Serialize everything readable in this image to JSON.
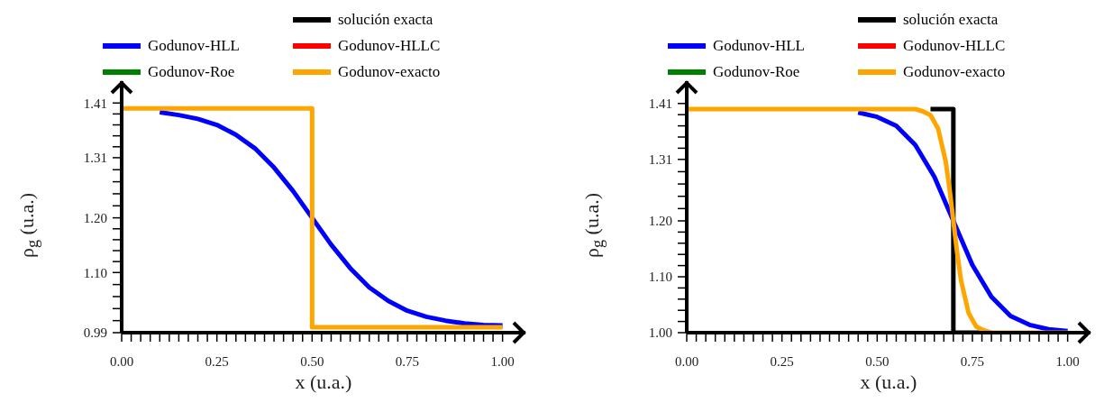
{
  "chart_data": [
    {
      "type": "line",
      "xlabel": "x (u.a.)",
      "ylabel": "ρ$_{g}$ (u.a.)",
      "legend": "top",
      "xlim": [
        0,
        1.06
      ],
      "ylim": [
        0.99,
        1.45
      ],
      "xticks": [
        {
          "value": 0,
          "label": "0.00"
        },
        {
          "value": 0.025,
          "label": null
        },
        {
          "value": 0.05,
          "label": null
        },
        {
          "value": 0.075,
          "label": null
        },
        {
          "value": 0.1,
          "label": null
        },
        {
          "value": 0.125,
          "label": null
        },
        {
          "value": 0.15,
          "label": null
        },
        {
          "value": 0.175,
          "label": null
        },
        {
          "value": 0.2,
          "label": null
        },
        {
          "value": 0.225,
          "label": null
        },
        {
          "value": 0.25,
          "label": "0.25"
        },
        {
          "value": 0.275,
          "label": null
        },
        {
          "value": 0.3,
          "label": null
        },
        {
          "value": 0.325,
          "label": null
        },
        {
          "value": 0.35,
          "label": null
        },
        {
          "value": 0.375,
          "label": null
        },
        {
          "value": 0.4,
          "label": null
        },
        {
          "value": 0.425,
          "label": null
        },
        {
          "value": 0.45,
          "label": null
        },
        {
          "value": 0.475,
          "label": null
        },
        {
          "value": 0.5,
          "label": "0.50"
        },
        {
          "value": 0.525,
          "label": null
        },
        {
          "value": 0.55,
          "label": null
        },
        {
          "value": 0.575,
          "label": null
        },
        {
          "value": 0.6,
          "label": null
        },
        {
          "value": 0.625,
          "label": null
        },
        {
          "value": 0.65,
          "label": null
        },
        {
          "value": 0.675,
          "label": null
        },
        {
          "value": 0.7,
          "label": null
        },
        {
          "value": 0.725,
          "label": null
        },
        {
          "value": 0.75,
          "label": "0.75"
        },
        {
          "value": 0.775,
          "label": null
        },
        {
          "value": 0.8,
          "label": null
        },
        {
          "value": 0.825,
          "label": null
        },
        {
          "value": 0.85,
          "label": null
        },
        {
          "value": 0.875,
          "label": null
        },
        {
          "value": 0.9,
          "label": null
        },
        {
          "value": 0.925,
          "label": null
        },
        {
          "value": 0.95,
          "label": null
        },
        {
          "value": 0.975,
          "label": null
        },
        {
          "value": 1,
          "label": "1.00"
        }
      ],
      "yticks": [
        {
          "value": 0.99,
          "label": "0.99"
        },
        {
          "value": 1.012,
          "label": null
        },
        {
          "value": 1.034,
          "label": null
        },
        {
          "value": 1.056,
          "label": null
        },
        {
          "value": 1.078,
          "label": null
        },
        {
          "value": 1.1,
          "label": "1.10"
        },
        {
          "value": 1.12,
          "label": null
        },
        {
          "value": 1.14,
          "label": null
        },
        {
          "value": 1.16,
          "label": null
        },
        {
          "value": 1.18,
          "label": null
        },
        {
          "value": 1.2,
          "label": "1.20"
        },
        {
          "value": 1.222,
          "label": null
        },
        {
          "value": 1.244,
          "label": null
        },
        {
          "value": 1.266,
          "label": null
        },
        {
          "value": 1.288,
          "label": null
        },
        {
          "value": 1.31,
          "label": "1.31"
        },
        {
          "value": 1.33,
          "label": null
        },
        {
          "value": 1.35,
          "label": null
        },
        {
          "value": 1.37,
          "label": null
        },
        {
          "value": 1.39,
          "label": null
        },
        {
          "value": 1.41,
          "label": "1.41"
        }
      ],
      "series": [
        {
          "name": "solución exacta",
          "color": "#000000"
        },
        {
          "name": "Godunov-HLL",
          "color": "#0000ff",
          "x": [
            0.1,
            0.15,
            0.2,
            0.25,
            0.3,
            0.35,
            0.4,
            0.45,
            0.5,
            0.55,
            0.6,
            0.65,
            0.7,
            0.75,
            0.8,
            0.85,
            0.9,
            0.95,
            1
          ],
          "values": [
            1.393,
            1.388,
            1.381,
            1.37,
            1.352,
            1.327,
            1.292,
            1.249,
            1.2,
            1.151,
            1.108,
            1.073,
            1.048,
            1.03,
            1.019,
            1.012,
            1.007,
            1.004,
            1.003
          ]
        },
        {
          "name": "Godunov-HLLC",
          "color": "#ff0000"
        },
        {
          "name": "Godunov-Roe",
          "color": "#008000"
        },
        {
          "name": "Godunov-exacto",
          "color": "#ffa500",
          "x": [
            0,
            0.5,
            0.5,
            1
          ],
          "values": [
            1.4,
            1.4,
            1.0,
            1.0
          ]
        }
      ]
    },
    {
      "type": "line",
      "xlabel": "x (u.a.)",
      "ylabel": "ρ$_{g}$ (u.a.)",
      "legend": "top",
      "xlim": [
        0,
        1.06
      ],
      "ylim": [
        1.0,
        1.45
      ],
      "xticks": [
        {
          "value": 0,
          "label": "0.00"
        },
        {
          "value": 0.025,
          "label": null
        },
        {
          "value": 0.05,
          "label": null
        },
        {
          "value": 0.075,
          "label": null
        },
        {
          "value": 0.1,
          "label": null
        },
        {
          "value": 0.125,
          "label": null
        },
        {
          "value": 0.15,
          "label": null
        },
        {
          "value": 0.175,
          "label": null
        },
        {
          "value": 0.2,
          "label": null
        },
        {
          "value": 0.225,
          "label": null
        },
        {
          "value": 0.25,
          "label": "0.25"
        },
        {
          "value": 0.275,
          "label": null
        },
        {
          "value": 0.3,
          "label": null
        },
        {
          "value": 0.325,
          "label": null
        },
        {
          "value": 0.35,
          "label": null
        },
        {
          "value": 0.375,
          "label": null
        },
        {
          "value": 0.4,
          "label": null
        },
        {
          "value": 0.425,
          "label": null
        },
        {
          "value": 0.45,
          "label": null
        },
        {
          "value": 0.475,
          "label": null
        },
        {
          "value": 0.5,
          "label": "0.50"
        },
        {
          "value": 0.525,
          "label": null
        },
        {
          "value": 0.55,
          "label": null
        },
        {
          "value": 0.575,
          "label": null
        },
        {
          "value": 0.6,
          "label": null
        },
        {
          "value": 0.625,
          "label": null
        },
        {
          "value": 0.65,
          "label": null
        },
        {
          "value": 0.675,
          "label": null
        },
        {
          "value": 0.7,
          "label": null
        },
        {
          "value": 0.725,
          "label": null
        },
        {
          "value": 0.75,
          "label": "0.75"
        },
        {
          "value": 0.775,
          "label": null
        },
        {
          "value": 0.8,
          "label": null
        },
        {
          "value": 0.825,
          "label": null
        },
        {
          "value": 0.85,
          "label": null
        },
        {
          "value": 0.875,
          "label": null
        },
        {
          "value": 0.9,
          "label": null
        },
        {
          "value": 0.925,
          "label": null
        },
        {
          "value": 0.95,
          "label": null
        },
        {
          "value": 0.975,
          "label": null
        },
        {
          "value": 1,
          "label": "1.00"
        }
      ],
      "yticks": [
        {
          "value": 1.0,
          "label": "1.00"
        },
        {
          "value": 1.02,
          "label": null
        },
        {
          "value": 1.04,
          "label": null
        },
        {
          "value": 1.06,
          "label": null
        },
        {
          "value": 1.08,
          "label": null
        },
        {
          "value": 1.1,
          "label": "1.10"
        },
        {
          "value": 1.12,
          "label": null
        },
        {
          "value": 1.14,
          "label": null
        },
        {
          "value": 1.16,
          "label": null
        },
        {
          "value": 1.18,
          "label": null
        },
        {
          "value": 1.2,
          "label": "1.20"
        },
        {
          "value": 1.222,
          "label": null
        },
        {
          "value": 1.244,
          "label": null
        },
        {
          "value": 1.266,
          "label": null
        },
        {
          "value": 1.288,
          "label": null
        },
        {
          "value": 1.31,
          "label": "1.31"
        },
        {
          "value": 1.33,
          "label": null
        },
        {
          "value": 1.35,
          "label": null
        },
        {
          "value": 1.37,
          "label": null
        },
        {
          "value": 1.39,
          "label": null
        },
        {
          "value": 1.41,
          "label": "1.41"
        }
      ],
      "series": [
        {
          "name": "solución exacta",
          "color": "#000000",
          "x": [
            0.64,
            0.7,
            0.7,
            0.8
          ],
          "values": [
            1.4,
            1.4,
            1.0,
            1.0
          ]
        },
        {
          "name": "Godunov-HLL",
          "color": "#0000ff",
          "x": [
            0.45,
            0.5,
            0.55,
            0.6,
            0.65,
            0.7,
            0.75,
            0.8,
            0.85,
            0.9,
            0.95,
            1
          ],
          "values": [
            1.394,
            1.386,
            1.37,
            1.336,
            1.279,
            1.2,
            1.121,
            1.064,
            1.03,
            1.014,
            1.006,
            1.003
          ]
        },
        {
          "name": "Godunov-HLLC",
          "color": "#ff0000"
        },
        {
          "name": "Godunov-Roe",
          "color": "#008000"
        },
        {
          "name": "Godunov-exacto",
          "color": "#ffa500",
          "x": [
            0,
            0.6,
            0.62,
            0.64,
            0.66,
            0.68,
            0.69,
            0.7,
            0.71,
            0.72,
            0.74,
            0.76,
            0.78,
            0.8,
            1
          ],
          "values": [
            1.4,
            1.4,
            1.396,
            1.389,
            1.365,
            1.306,
            1.257,
            1.2,
            1.143,
            1.094,
            1.035,
            1.011,
            1.004,
            1.0,
            1.0
          ]
        }
      ]
    }
  ]
}
